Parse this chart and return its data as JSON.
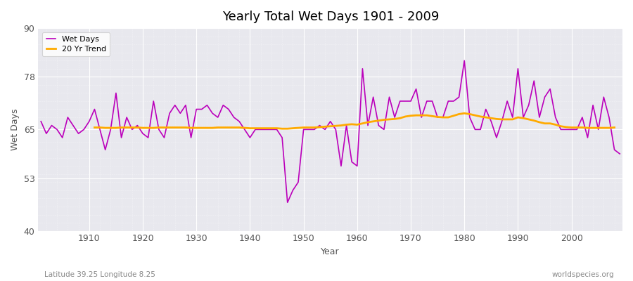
{
  "title": "Yearly Total Wet Days 1901 - 2009",
  "xlabel": "Year",
  "ylabel": "Wet Days",
  "lat_lon_label": "Latitude 39.25 Longitude 8.25",
  "source_label": "worldspecies.org",
  "ylim": [
    40,
    90
  ],
  "yticks": [
    40,
    53,
    65,
    78,
    90
  ],
  "fig_bg_color": "#ffffff",
  "plot_bg_color": "#e8e8ee",
  "wet_days_color": "#bb00bb",
  "trend_color": "#ffaa00",
  "wet_days_linewidth": 1.2,
  "trend_linewidth": 2.0,
  "years": [
    1901,
    1902,
    1903,
    1904,
    1905,
    1906,
    1907,
    1908,
    1909,
    1910,
    1911,
    1912,
    1913,
    1914,
    1915,
    1916,
    1917,
    1918,
    1919,
    1920,
    1921,
    1922,
    1923,
    1924,
    1925,
    1926,
    1927,
    1928,
    1929,
    1930,
    1931,
    1932,
    1933,
    1934,
    1935,
    1936,
    1937,
    1938,
    1939,
    1940,
    1941,
    1942,
    1943,
    1944,
    1945,
    1946,
    1947,
    1948,
    1949,
    1950,
    1951,
    1952,
    1953,
    1954,
    1955,
    1956,
    1957,
    1958,
    1959,
    1960,
    1961,
    1962,
    1963,
    1964,
    1965,
    1966,
    1967,
    1968,
    1969,
    1970,
    1971,
    1972,
    1973,
    1974,
    1975,
    1976,
    1977,
    1978,
    1979,
    1980,
    1981,
    1982,
    1983,
    1984,
    1985,
    1986,
    1987,
    1988,
    1989,
    1990,
    1991,
    1992,
    1993,
    1994,
    1995,
    1996,
    1997,
    1998,
    1999,
    2000,
    2001,
    2002,
    2003,
    2004,
    2005,
    2006,
    2007,
    2008,
    2009
  ],
  "wet_days": [
    67,
    64,
    66,
    65,
    63,
    68,
    66,
    64,
    65,
    67,
    70,
    65,
    60,
    65,
    74,
    63,
    68,
    65,
    66,
    64,
    63,
    72,
    65,
    63,
    69,
    71,
    69,
    71,
    63,
    70,
    70,
    71,
    69,
    68,
    71,
    70,
    68,
    67,
    65,
    63,
    65,
    65,
    65,
    65,
    65,
    63,
    47,
    50,
    52,
    65,
    65,
    65,
    66,
    65,
    67,
    65,
    56,
    66,
    57,
    56,
    80,
    66,
    73,
    66,
    65,
    73,
    68,
    72,
    72,
    72,
    75,
    68,
    72,
    72,
    68,
    68,
    72,
    72,
    73,
    82,
    68,
    65,
    65,
    70,
    67,
    63,
    67,
    72,
    68,
    80,
    68,
    71,
    77,
    68,
    73,
    75,
    68,
    65,
    65,
    65,
    65,
    68,
    63,
    71,
    65,
    73,
    68,
    60,
    59
  ],
  "trend": [
    null,
    null,
    null,
    null,
    null,
    null,
    null,
    null,
    null,
    null,
    65.5,
    65.5,
    65.4,
    65.4,
    65.4,
    65.5,
    65.5,
    65.5,
    65.5,
    65.4,
    65.4,
    65.4,
    65.5,
    65.5,
    65.5,
    65.5,
    65.5,
    65.5,
    65.4,
    65.4,
    65.4,
    65.4,
    65.4,
    65.5,
    65.5,
    65.5,
    65.5,
    65.5,
    65.4,
    65.3,
    65.3,
    65.3,
    65.3,
    65.3,
    65.3,
    65.2,
    65.2,
    65.3,
    65.4,
    65.5,
    65.5,
    65.5,
    65.6,
    65.7,
    65.8,
    65.9,
    66.0,
    66.2,
    66.3,
    66.2,
    66.5,
    66.8,
    67.0,
    67.2,
    67.4,
    67.5,
    67.6,
    67.8,
    68.2,
    68.4,
    68.5,
    68.5,
    68.5,
    68.3,
    68.1,
    68.0,
    68.0,
    68.4,
    68.8,
    69.0,
    68.8,
    68.5,
    68.2,
    68.0,
    67.8,
    67.6,
    67.5,
    67.5,
    67.5,
    68.0,
    67.8,
    67.5,
    67.2,
    66.8,
    66.5,
    66.5,
    66.2,
    65.8,
    65.6,
    65.5,
    65.5,
    65.5,
    65.4,
    65.4,
    65.4,
    65.4,
    65.4,
    65.5,
    null
  ]
}
